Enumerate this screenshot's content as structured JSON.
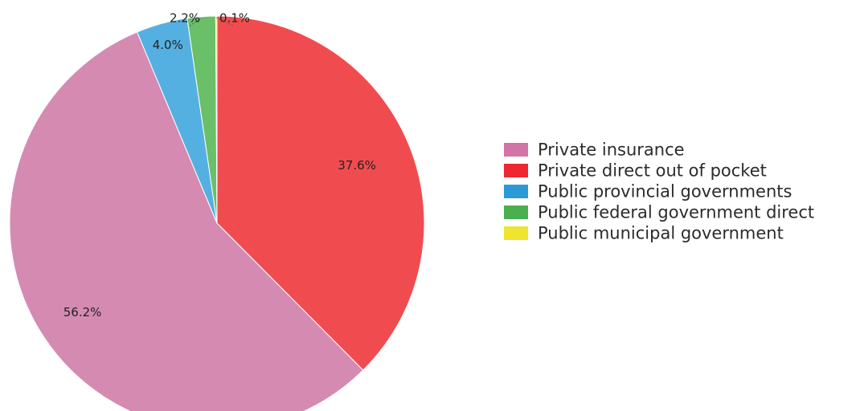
{
  "chart_data": {
    "type": "pie",
    "title": "",
    "start_angle_deg": 0,
    "direction": "clockwise",
    "legend_position": "right",
    "slices": [
      {
        "label": "Private direct out of pocket",
        "value": 37.6,
        "value_label": "37.6%",
        "color": "#f04c50",
        "legend_color": "#ee2731"
      },
      {
        "label": "Private insurance",
        "value": 56.2,
        "value_label": "56.2%",
        "color": "#d58ab2",
        "legend_color": "#d274a6"
      },
      {
        "label": "Public provincial governments",
        "value": 4.0,
        "value_label": "4.0%",
        "color": "#55b0e2",
        "legend_color": "#2d9ad8"
      },
      {
        "label": "Public federal government direct",
        "value": 2.2,
        "value_label": "2.2%",
        "color": "#6abf69",
        "legend_color": "#4bae4f"
      },
      {
        "label": "Public municipal government",
        "value": 0.1,
        "value_label": "0.1%",
        "color": "#f2e63a",
        "legend_color": "#efe52e"
      }
    ],
    "legend_order": [
      "Private insurance",
      "Private direct out of pocket",
      "Public provincial governments",
      "Public federal government direct",
      "Public municipal government"
    ]
  }
}
